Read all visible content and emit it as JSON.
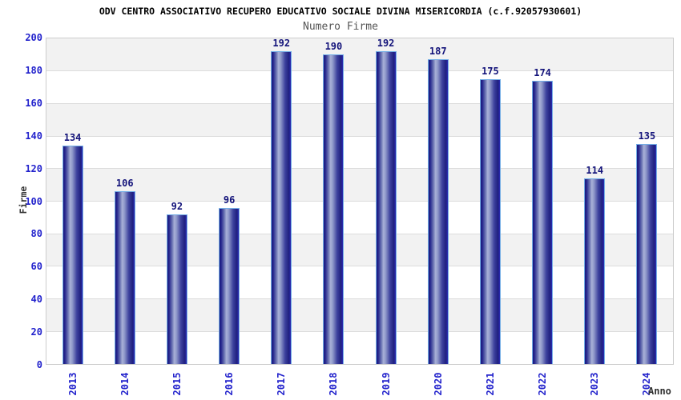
{
  "header": {
    "title": "ODV CENTRO ASSOCIATIVO RECUPERO EDUCATIVO SOCIALE DIVINA MISERICORDIA (c.f.92057930601)",
    "subtitle": "Numero Firme"
  },
  "chart_data": {
    "type": "bar",
    "title": "ODV CENTRO ASSOCIATIVO RECUPERO EDUCATIVO SOCIALE DIVINA MISERICORDIA (c.f.92057930601)",
    "subtitle": "Numero Firme",
    "categories": [
      "2013",
      "2014",
      "2015",
      "2016",
      "2017",
      "2018",
      "2019",
      "2020",
      "2021",
      "2022",
      "2023",
      "2024"
    ],
    "values": [
      134,
      106,
      92,
      96,
      192,
      190,
      192,
      187,
      175,
      174,
      114,
      135
    ],
    "xlabel": "Anno",
    "ylabel": "Firme",
    "ylim": [
      0,
      200
    ],
    "ytick_step": 20,
    "yticks": [
      0,
      20,
      40,
      60,
      80,
      100,
      120,
      140,
      160,
      180,
      200
    ],
    "grid": true,
    "legend": "none",
    "band_colors": [
      "#ffffff",
      "#f2f2f2"
    ],
    "colors": {
      "tick_label": "#2222cc",
      "value_label": "#13137a",
      "bar_dark": "#1a1a7e",
      "bar_highlight": "#a9b1d8",
      "bar_border": "#74aee6",
      "gridline": "#dcdcdc",
      "plot_border": "#cccccc",
      "title": "#000000",
      "subtitle": "#555555",
      "axis_title": "#333333"
    }
  }
}
